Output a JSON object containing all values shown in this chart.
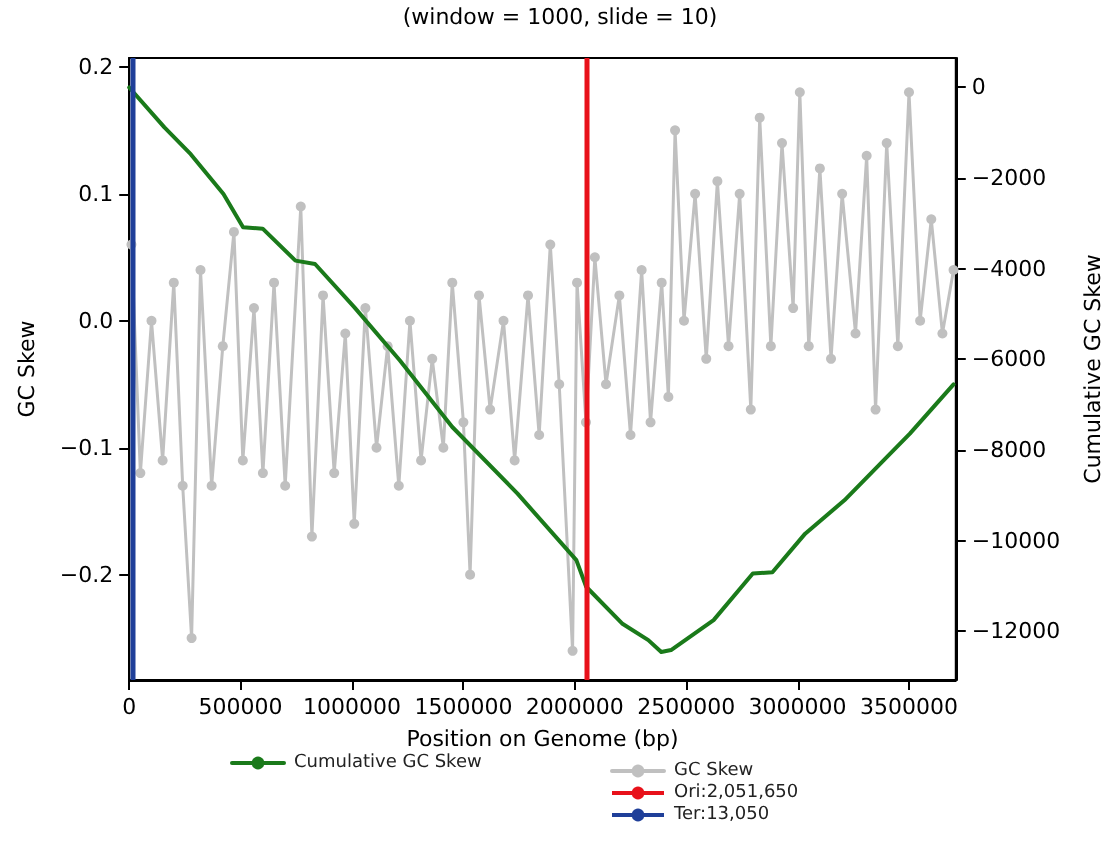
{
  "chart_data": {
    "type": "line",
    "subtitle": "(window = 1000, slide = 10)",
    "xlabel": "Position on Genome (bp)",
    "ylabel": "GC Skew",
    "y2label": "Cumulative GC Skew",
    "xlim": [
      0,
      3710000
    ],
    "xticks": [
      0,
      500000,
      1000000,
      1500000,
      2000000,
      2500000,
      3000000,
      3500000
    ],
    "ylim": [
      -0.283,
      0.207
    ],
    "yticks": [
      {
        "value": -0.2,
        "label": "−0.2"
      },
      {
        "value": -0.1,
        "label": "−0.1"
      },
      {
        "value": 0,
        "label": "0.0"
      },
      {
        "value": 0.1,
        "label": "0.1"
      },
      {
        "value": 0.2,
        "label": "0.2"
      }
    ],
    "y2lim": [
      -13070,
      650
    ],
    "y2ticks": [
      0,
      {
        "value": -2000,
        "label": "−2000"
      },
      {
        "value": -4000,
        "label": "−4000"
      },
      {
        "value": -6000,
        "label": "−6000"
      },
      {
        "value": -8000,
        "label": "−8000"
      },
      {
        "value": -10000,
        "label": "−10000"
      },
      {
        "value": -12000,
        "label": "−12000"
      }
    ],
    "grid": false,
    "legend": "bottom",
    "line_style": "solid",
    "series": [
      {
        "name": "Cumulative GC Skew",
        "color": "#1a7a1a",
        "axis": "y2",
        "marker": "none",
        "x": [
          0,
          158000,
          276000,
          423000,
          511000,
          599000,
          746000,
          834000,
          1010000,
          1215000,
          1450000,
          1743000,
          2007000,
          2051000,
          2212000,
          2330000,
          2388000,
          2432000,
          2623000,
          2799000,
          2887000,
          3034000,
          3210000,
          3386000,
          3504000,
          3700000
        ],
        "values": [
          0,
          -881,
          -1471,
          -2352,
          -3084,
          -3114,
          -3819,
          -3894,
          -4846,
          -6022,
          -7489,
          -8960,
          -10427,
          -11013,
          -11823,
          -12190,
          -12454,
          -12410,
          -11749,
          -10722,
          -10692,
          -9842,
          -9106,
          -8225,
          -7636,
          -6550
        ]
      },
      {
        "name": "GC Skew",
        "color": "#c0c0c0",
        "axis": "y",
        "marker": "circle",
        "x": [
          10000,
          50000,
          100000,
          150000,
          200000,
          240000,
          280000,
          320000,
          370000,
          420000,
          470000,
          510000,
          560000,
          600000,
          650000,
          700000,
          770000,
          820000,
          870000,
          920000,
          970000,
          1010000,
          1060000,
          1110000,
          1160000,
          1210000,
          1260000,
          1310000,
          1360000,
          1410000,
          1450000,
          1500000,
          1530000,
          1570000,
          1620000,
          1680000,
          1730000,
          1790000,
          1840000,
          1890000,
          1930000,
          1990000,
          2010000,
          2050000,
          2090000,
          2140000,
          2200000,
          2250000,
          2300000,
          2340000,
          2390000,
          2420000,
          2450000,
          2490000,
          2540000,
          2590000,
          2640000,
          2690000,
          2740000,
          2790000,
          2830000,
          2880000,
          2930000,
          2980000,
          3010000,
          3050000,
          3100000,
          3150000,
          3200000,
          3260000,
          3310000,
          3350000,
          3400000,
          3450000,
          3500000,
          3550000,
          3600000,
          3650000,
          3700000
        ],
        "values": [
          0.06,
          -0.12,
          0.0,
          -0.11,
          0.03,
          -0.13,
          -0.25,
          0.04,
          -0.13,
          -0.02,
          0.07,
          -0.11,
          0.01,
          -0.12,
          0.03,
          -0.13,
          0.09,
          -0.17,
          0.02,
          -0.12,
          -0.01,
          -0.16,
          0.01,
          -0.1,
          -0.02,
          -0.13,
          0.0,
          -0.11,
          -0.03,
          -0.1,
          0.03,
          -0.08,
          -0.2,
          0.02,
          -0.07,
          0.0,
          -0.11,
          0.02,
          -0.09,
          0.06,
          -0.05,
          -0.26,
          0.03,
          -0.08,
          0.05,
          -0.05,
          0.02,
          -0.09,
          0.04,
          -0.08,
          0.03,
          -0.06,
          0.15,
          0.0,
          0.1,
          -0.03,
          0.11,
          -0.02,
          0.1,
          -0.07,
          0.16,
          -0.02,
          0.14,
          0.01,
          0.18,
          -0.02,
          0.12,
          -0.03,
          0.1,
          -0.01,
          0.13,
          -0.07,
          0.14,
          -0.02,
          0.18,
          0.0,
          0.08,
          -0.01,
          0.04
        ]
      }
    ],
    "ref_lines": [
      {
        "axis": "x",
        "value": 2051650,
        "label": "Ori:2,051,650",
        "color": "#e8111a"
      },
      {
        "axis": "x",
        "value": 13050,
        "label": "Ter:13,050",
        "color": "#1f3f99"
      }
    ]
  }
}
